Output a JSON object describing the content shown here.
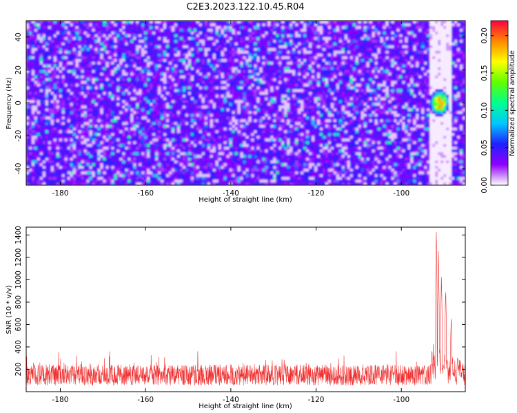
{
  "title": "C2E3.2023.122.10.45.R04",
  "chart_data": [
    {
      "type": "heatmap",
      "xlabel": "Height of straight line (km)",
      "ylabel": "Frequency (Hz)",
      "xlim": [
        -188,
        -85
      ],
      "ylim": [
        -50,
        50
      ],
      "x_ticks": [
        -180,
        -160,
        -140,
        -120,
        -100
      ],
      "y_ticks": [
        -40,
        -20,
        0,
        20,
        40
      ],
      "colorbar": {
        "label": "Normalized spectral amplitude",
        "range": [
          0,
          0.22
        ],
        "ticks": [
          "0.00",
          "0.05",
          "0.10",
          "0.15",
          "0.20"
        ],
        "colors": [
          "#ffffff",
          "#9000ff",
          "#2020ff",
          "#00c8ff",
          "#00ff90",
          "#60ff00",
          "#ffff00",
          "#ff8800",
          "#ff0040"
        ]
      },
      "description_values": {
        "background_amplitude": 0.03,
        "blank_band_km": [
          -93.5,
          -88.5
        ],
        "hotspot_center": {
          "x_km": -91,
          "freq_hz": 0
        },
        "hotspot_peak_amplitude": 0.21
      }
    },
    {
      "type": "line",
      "xlabel": "Height of straight line (km)",
      "ylabel": "SNR (10 * v/v)",
      "xlim": [
        -188,
        -85
      ],
      "ylim": [
        0,
        1470
      ],
      "x_ticks": [
        -180,
        -160,
        -140,
        -120,
        -100
      ],
      "y_ticks": [
        200,
        400,
        600,
        800,
        1000,
        1200,
        1400
      ],
      "series": [
        {
          "color": "#f03030",
          "baseline_mean": 150,
          "noise_max": 300,
          "peaks": [
            {
              "x": -91.8,
              "y": 1470
            },
            {
              "x": -91.3,
              "y": 1260
            },
            {
              "x": -90.6,
              "y": 1050
            },
            {
              "x": -89.6,
              "y": 930
            },
            {
              "x": -88.3,
              "y": 680
            },
            {
              "x": -86.8,
              "y": 320
            }
          ]
        }
      ]
    }
  ]
}
